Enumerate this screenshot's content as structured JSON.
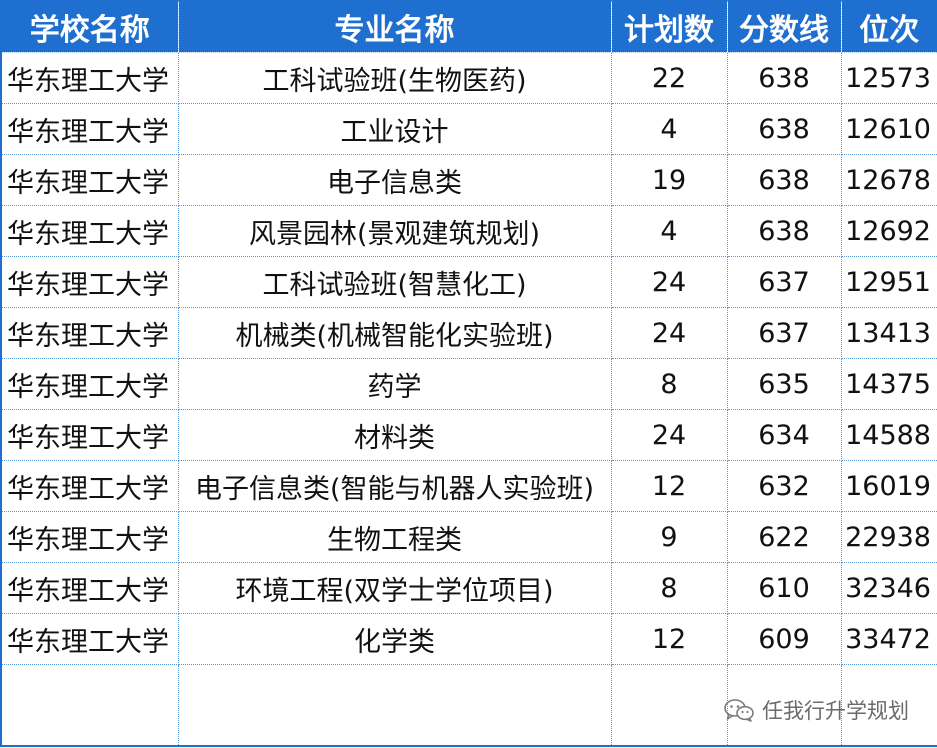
{
  "table": {
    "headers": {
      "school": "学校名称",
      "major": "专业名称",
      "plan": "计划数",
      "score": "分数线",
      "rank": "位次"
    },
    "rows": [
      {
        "school": "华东理工大学",
        "major": "工科试验班(生物医药)",
        "plan": "22",
        "score": "638",
        "rank": "12573"
      },
      {
        "school": "华东理工大学",
        "major": "工业设计",
        "plan": "4",
        "score": "638",
        "rank": "12610"
      },
      {
        "school": "华东理工大学",
        "major": "电子信息类",
        "plan": "19",
        "score": "638",
        "rank": "12678"
      },
      {
        "school": "华东理工大学",
        "major": "风景园林(景观建筑规划)",
        "plan": "4",
        "score": "638",
        "rank": "12692"
      },
      {
        "school": "华东理工大学",
        "major": "工科试验班(智慧化工)",
        "plan": "24",
        "score": "637",
        "rank": "12951"
      },
      {
        "school": "华东理工大学",
        "major": "机械类(机械智能化实验班)",
        "plan": "24",
        "score": "637",
        "rank": "13413"
      },
      {
        "school": "华东理工大学",
        "major": "药学",
        "plan": "8",
        "score": "635",
        "rank": "14375"
      },
      {
        "school": "华东理工大学",
        "major": "材料类",
        "plan": "24",
        "score": "634",
        "rank": "14588"
      },
      {
        "school": "华东理工大学",
        "major": "电子信息类(智能与机器人实验班)",
        "plan": "12",
        "score": "632",
        "rank": "16019"
      },
      {
        "school": "华东理工大学",
        "major": "生物工程类",
        "plan": "9",
        "score": "622",
        "rank": "22938"
      },
      {
        "school": "华东理工大学",
        "major": "环境工程(双学士学位项目)",
        "plan": "8",
        "score": "610",
        "rank": "32346"
      },
      {
        "school": "华东理工大学",
        "major": "化学类",
        "plan": "12",
        "score": "609",
        "rank": "33472"
      }
    ]
  },
  "watermark": {
    "text": "任我行升学规划",
    "icon": "wechat-icon"
  },
  "colors": {
    "header_bg": "#1f6fd0",
    "header_text": "#ffffff",
    "grid_line": "#5a9bdc",
    "cell_text": "#111111",
    "watermark_text": "#6b6b6b"
  }
}
